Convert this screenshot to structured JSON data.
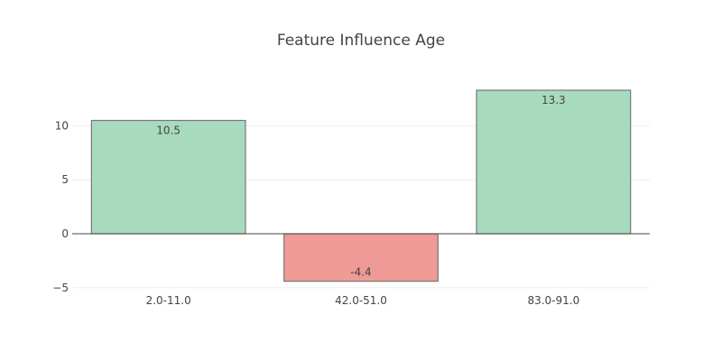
{
  "chart_data": {
    "type": "bar",
    "title": "Feature Influence Age",
    "categories": [
      "2.0-11.0",
      "42.0-51.0",
      "83.0-91.0"
    ],
    "values": [
      10.5,
      -4.4,
      13.3
    ],
    "value_labels": [
      "10.5",
      "-4.4",
      "13.3"
    ],
    "yticks": [
      -5,
      0,
      5,
      10
    ],
    "ytick_labels": [
      "−5",
      "0",
      "5",
      "10"
    ],
    "ylim": [
      -5.1,
      13.3
    ],
    "xlabel": "",
    "ylabel": "",
    "grid": true,
    "colors": {
      "positive": "#a8dbbd",
      "negative": "#ef9a96",
      "outline": "#777777",
      "grid": "#eeeeee",
      "zero_line": "#444444",
      "text": "#444444"
    }
  }
}
